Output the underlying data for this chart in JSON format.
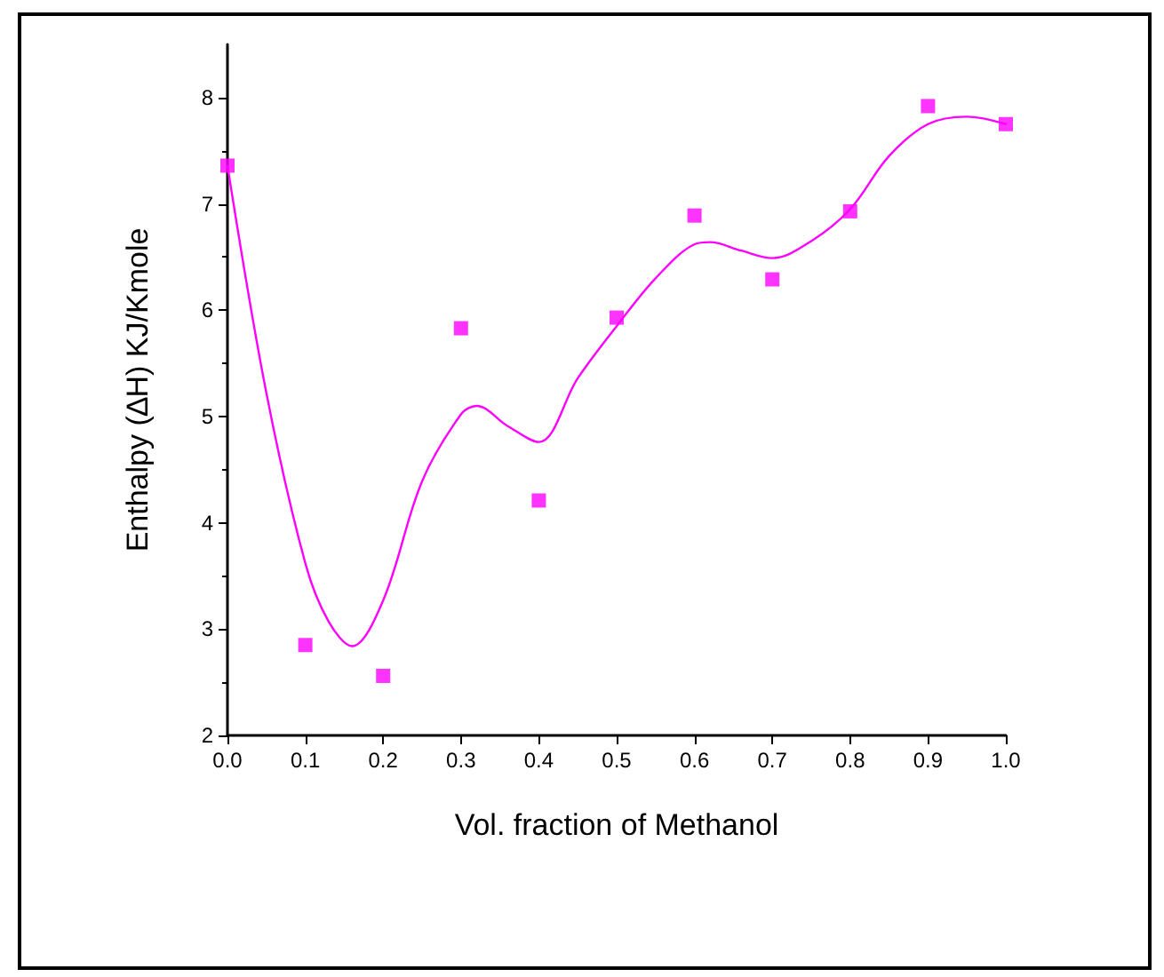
{
  "chart_data": {
    "type": "scatter",
    "xlabel": "Vol. fraction of Methanol",
    "ylabel": "Enthalpy (∆H) KJ/Kmole",
    "x": [
      0.0,
      0.1,
      0.2,
      0.3,
      0.4,
      0.5,
      0.6,
      0.7,
      0.8,
      0.9,
      1.0
    ],
    "series": [
      {
        "marker": "square",
        "color": "#ff00ff",
        "values": [
          7.36,
          2.85,
          2.56,
          5.83,
          4.21,
          5.93,
          6.89,
          6.29,
          6.93,
          7.92,
          7.75
        ]
      },
      {
        "type": "line",
        "marker": "none",
        "line_style": "solid",
        "color": "#ff00ff",
        "x": [
          0.0,
          0.05,
          0.1,
          0.13,
          0.16,
          0.2,
          0.25,
          0.3,
          0.32,
          0.36,
          0.4,
          0.45,
          0.5,
          0.55,
          0.6,
          0.62,
          0.66,
          0.7,
          0.75,
          0.8,
          0.85,
          0.9,
          0.95,
          1.0
        ],
        "values": [
          7.36,
          5.22,
          3.62,
          3.07,
          2.84,
          3.27,
          4.39,
          5.02,
          5.1,
          4.91,
          4.76,
          5.36,
          5.85,
          6.3,
          6.62,
          6.64,
          6.56,
          6.49,
          6.65,
          6.95,
          7.45,
          7.75,
          7.82,
          7.75
        ]
      }
    ],
    "xlim": [
      0,
      1
    ],
    "xticks": [
      {
        "value": 0,
        "label": "0.0"
      },
      0.1,
      0.2,
      0.3,
      0.4,
      0.5,
      0.6,
      0.7,
      0.8,
      0.9,
      {
        "value": 1,
        "label": "1.0"
      }
    ],
    "ylim": [
      2,
      8.5
    ],
    "yticks": [
      2,
      3,
      4,
      5,
      6,
      7,
      8
    ],
    "grid": false
  }
}
